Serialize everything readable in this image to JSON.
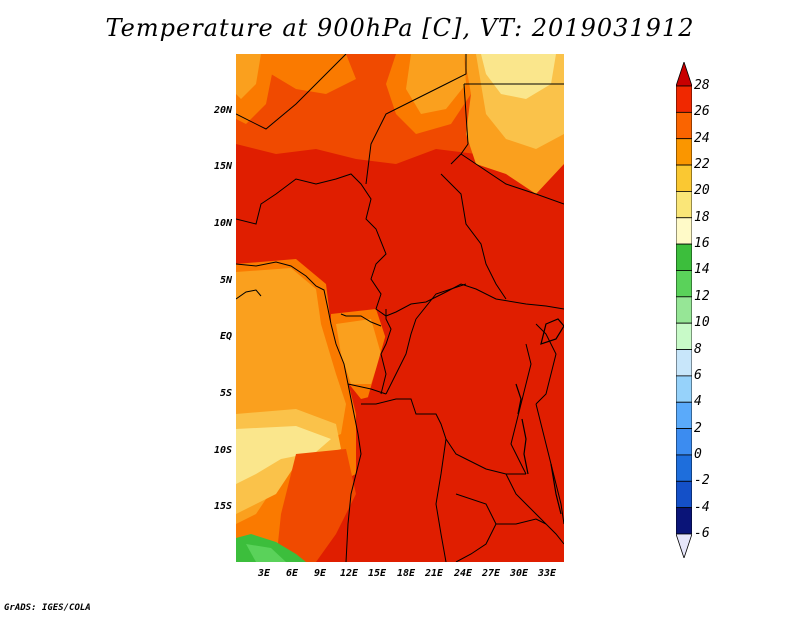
{
  "title": "Temperature at 900hPa [C], VT: 2019031912",
  "credit": "GrADS: IGES/COLA",
  "lat_labels": [
    "20N",
    "15N",
    "10N",
    "5N",
    "EQ",
    "5S",
    "10S",
    "15S"
  ],
  "lon_labels": [
    "3E",
    "6E",
    "9E",
    "12E",
    "15E",
    "18E",
    "21E",
    "24E",
    "27E",
    "30E",
    "33E"
  ],
  "colorbar": {
    "labels": [
      "28",
      "26",
      "24",
      "22",
      "20",
      "18",
      "16",
      "14",
      "12",
      "10",
      "8",
      "6",
      "4",
      "2",
      "0",
      "-2",
      "-4",
      "-6"
    ],
    "colors": [
      "#da0000",
      "#f02800",
      "#fa6400",
      "#fa9600",
      "#fac832",
      "#fae678",
      "#fffac8",
      "#3cbe3c",
      "#5ad25a",
      "#96e696",
      "#c8fac8",
      "#c8e6fa",
      "#96d2fa",
      "#5aaafa",
      "#3c8cf0",
      "#1e6edc",
      "#1450c8",
      "#0a1478"
    ],
    "top_arrow_color": "#c80000",
    "bottom_arrow_color": "#e6e6fa"
  },
  "map_colors": {
    "c28": "#e01e00",
    "c26": "#f04a00",
    "c24": "#fa7a00",
    "c22": "#faa01e",
    "c20": "#fac24a",
    "c18": "#fae68c",
    "c16": "#fffac8",
    "c14": "#3cbe3c",
    "c12": "#5ad25a"
  }
}
